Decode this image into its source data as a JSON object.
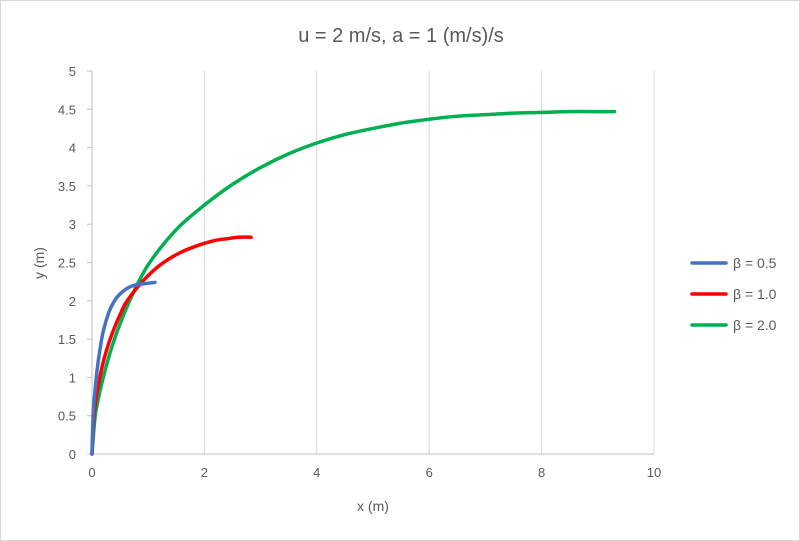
{
  "chart_data": {
    "type": "line",
    "title": "u = 2 m/s, a = 1 (m/s)/s",
    "xlabel": "x  (m)",
    "ylabel": "y  (m)",
    "xlim": [
      0,
      10
    ],
    "ylim": [
      0,
      5
    ],
    "xticks": [
      "0",
      "2",
      "4",
      "6",
      "8",
      "10"
    ],
    "yticks": [
      "0",
      "0.5",
      "1",
      "1.5",
      "2",
      "2.5",
      "3",
      "3.5",
      "4",
      "4.5",
      "5"
    ],
    "grid": "vertical",
    "legend_position": "right",
    "series": [
      {
        "name": "β = 0.5",
        "color": "#4472C4",
        "x": [
          0,
          0.02,
          0.05,
          0.1,
          0.15,
          0.2,
          0.3,
          0.4,
          0.5,
          0.6,
          0.7,
          0.8,
          0.9,
          1.0,
          1.12
        ],
        "y": [
          0,
          0.5,
          0.8,
          1.15,
          1.4,
          1.6,
          1.85,
          2.0,
          2.09,
          2.15,
          2.19,
          2.21,
          2.22,
          2.23,
          2.24
        ]
      },
      {
        "name": "β = 1.0",
        "color": "#FF0000",
        "x": [
          0,
          0.02,
          0.05,
          0.1,
          0.2,
          0.3,
          0.4,
          0.5,
          0.6,
          0.8,
          1.0,
          1.2,
          1.4,
          1.6,
          1.8,
          2.0,
          2.2,
          2.4,
          2.6,
          2.83
        ],
        "y": [
          0,
          0.35,
          0.6,
          0.85,
          1.2,
          1.45,
          1.65,
          1.82,
          1.97,
          2.17,
          2.33,
          2.46,
          2.56,
          2.64,
          2.7,
          2.75,
          2.79,
          2.81,
          2.83,
          2.83
        ]
      },
      {
        "name": "β = 2.0",
        "color": "#00B050",
        "x": [
          0,
          0.05,
          0.1,
          0.2,
          0.3,
          0.4,
          0.5,
          0.7,
          1.0,
          1.5,
          2.0,
          2.5,
          3.0,
          3.5,
          4.0,
          4.5,
          5.0,
          5.5,
          6.0,
          6.5,
          7.0,
          7.5,
          8.0,
          8.5,
          9.0,
          9.3
        ],
        "y": [
          0,
          0.45,
          0.68,
          1.0,
          1.27,
          1.5,
          1.7,
          2.05,
          2.47,
          2.93,
          3.25,
          3.52,
          3.74,
          3.92,
          4.06,
          4.17,
          4.25,
          4.32,
          4.37,
          4.41,
          4.43,
          4.45,
          4.46,
          4.47,
          4.47,
          4.47
        ]
      }
    ]
  }
}
